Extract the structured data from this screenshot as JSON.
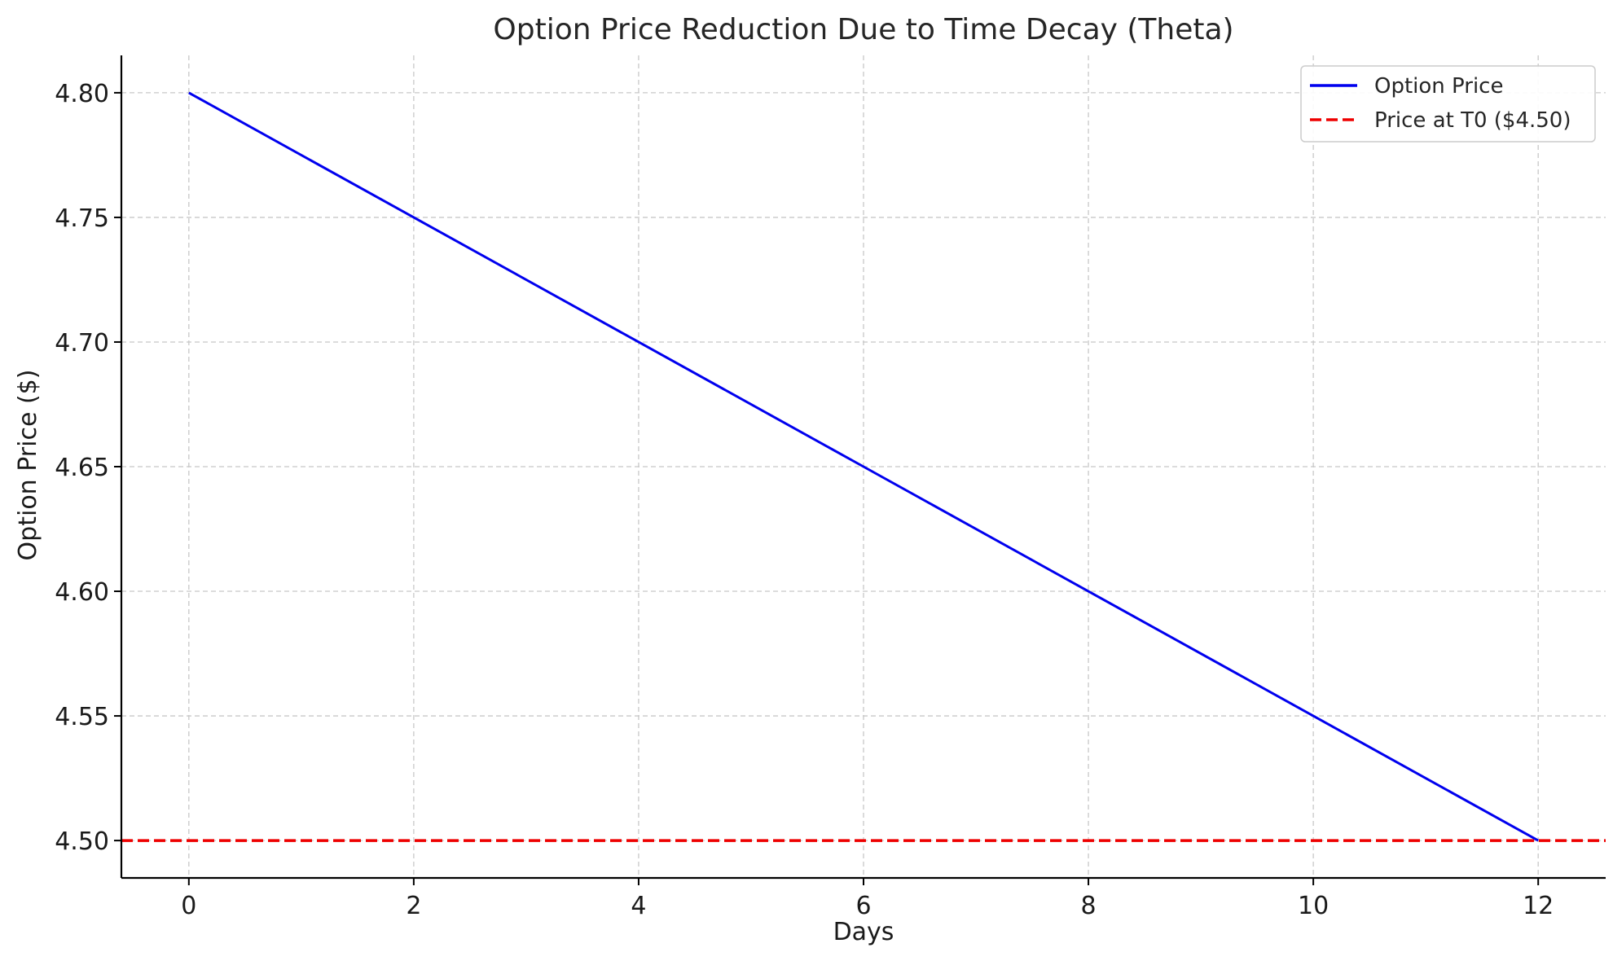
{
  "chart_data": {
    "type": "line",
    "title": "Option Price Reduction Due to Time Decay (Theta)",
    "xlabel": "Days",
    "ylabel": "Option Price ($)",
    "xlim": [
      -0.6,
      12.6
    ],
    "ylim": [
      4.485,
      4.815
    ],
    "xticks": [
      0,
      2,
      4,
      6,
      8,
      10,
      12
    ],
    "xtick_labels": [
      "0",
      "2",
      "4",
      "6",
      "8",
      "10",
      "12"
    ],
    "yticks": [
      4.5,
      4.55,
      4.6,
      4.65,
      4.7,
      4.75,
      4.8
    ],
    "ytick_labels": [
      "4.50",
      "4.55",
      "4.60",
      "4.65",
      "4.70",
      "4.75",
      "4.80"
    ],
    "grid": true,
    "legend_position": "top-right",
    "series": [
      {
        "name": "Option Price",
        "x": [
          0,
          2,
          4,
          6,
          8,
          10,
          12
        ],
        "y": [
          4.8,
          4.75,
          4.7,
          4.65,
          4.6,
          4.55,
          4.5
        ],
        "color": "#0000ee",
        "style": "solid"
      }
    ],
    "reference_lines": [
      {
        "name": "Price at T0 ($4.50)",
        "y": 4.5,
        "color": "#ee0000",
        "style": "dashed"
      }
    ]
  }
}
